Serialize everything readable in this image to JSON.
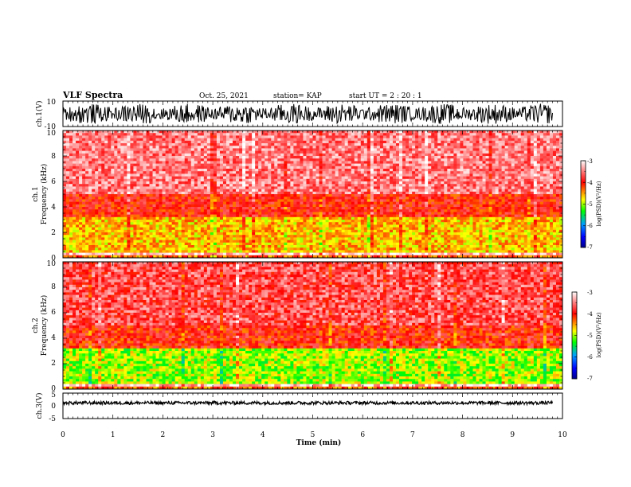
{
  "header": {
    "title": "VLF Spectra",
    "date": "Oct. 25, 2021",
    "station": "station= KAP",
    "start": "start  UT =   2 : 20 : 1"
  },
  "colors": {
    "background": "#ffffff",
    "axis": "#000000",
    "colormap": [
      "#00008b",
      "#0000ff",
      "#00a0ff",
      "#00ff00",
      "#ffff00",
      "#ff8000",
      "#ff0000",
      "#ff8080",
      "#ffffff"
    ]
  },
  "chart_data": [
    {
      "id": "ch1-waveform",
      "type": "line",
      "ylabel": "ch.1(V)",
      "ylim": [
        -10,
        10
      ],
      "yticklabels": [
        "10",
        "-10"
      ],
      "description_values": {
        "typical_min": -8,
        "typical_max": 8
      }
    },
    {
      "id": "ch1-spectrogram",
      "type": "heatmap",
      "ylabel_line1": "ch.1",
      "ylabel_line2": "Frequency  (kHz)",
      "ylim": [
        0,
        10
      ],
      "yticklabels": [
        "0",
        "2",
        "4",
        "6",
        "8",
        "10"
      ],
      "colorbar": {
        "label": "log(PSD)(V²/Hz)",
        "range": [
          -7,
          -3
        ],
        "ticklabels": [
          "-3",
          "-4",
          "-5",
          "-6",
          "-7"
        ]
      },
      "bands_khz": [
        {
          "from": 0.0,
          "to": 0.5,
          "level": -4.3
        },
        {
          "from": 0.5,
          "to": 3.3,
          "level": -4.6
        },
        {
          "from": 3.3,
          "to": 5.0,
          "level": -4.0
        },
        {
          "from": 5.0,
          "to": 10.0,
          "level": -3.5
        }
      ]
    },
    {
      "id": "ch2-spectrogram",
      "type": "heatmap",
      "ylabel_line1": "ch.2",
      "ylabel_line2": "Frequency  (kHz)",
      "ylim": [
        0,
        10
      ],
      "yticklabels": [
        "0",
        "2",
        "4",
        "6",
        "8",
        "10"
      ],
      "colorbar": {
        "label": "log(PSD)(V²/Hz)",
        "range": [
          -7,
          -3
        ],
        "ticklabels": [
          "-3",
          "-4",
          "-5",
          "-6",
          "-7"
        ]
      },
      "bands_khz": [
        {
          "from": 0.0,
          "to": 0.5,
          "level": -4.3
        },
        {
          "from": 0.5,
          "to": 3.3,
          "level": -5.0
        },
        {
          "from": 3.3,
          "to": 5.0,
          "level": -4.0
        },
        {
          "from": 5.0,
          "to": 10.0,
          "level": -3.7
        }
      ]
    },
    {
      "id": "ch3-waveform",
      "type": "line",
      "ylabel": "ch.3(V)",
      "ylim": [
        -5,
        5
      ],
      "yticklabels": [
        "5",
        "0",
        "-5"
      ],
      "xlabel": "Time  (min)",
      "xlim": [
        0,
        10
      ],
      "xticklabels": [
        "0",
        "1",
        "2",
        "3",
        "4",
        "5",
        "6",
        "7",
        "8",
        "9",
        "10"
      ],
      "description_values": {
        "typical_min": 0.5,
        "typical_max": 1.8
      }
    }
  ]
}
